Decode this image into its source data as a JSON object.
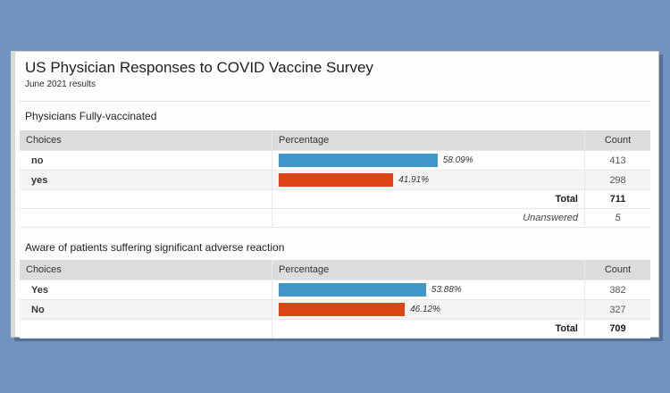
{
  "page": {
    "title": "US Physician Responses to COVID Vaccine Survey",
    "subtitle": "June 2021 results"
  },
  "colors": {
    "page_background": "#7093c0",
    "card_background": "#fdfdfd",
    "table_header_background": "#dcdcdc",
    "alt_row_background": "#f4f4f4",
    "bar_blue": "#3e97c8",
    "bar_orange": "#dc4513"
  },
  "tables": [
    {
      "heading": "Physicians Fully-vaccinated",
      "columns": [
        "Choices",
        "Percentage",
        "Count"
      ],
      "rows": [
        {
          "choice": "no",
          "percentage": 58.09,
          "percentage_label": "58.09%",
          "count": "413",
          "bar_color": "#3e97c8"
        },
        {
          "choice": "yes",
          "percentage": 41.91,
          "percentage_label": "41.91%",
          "count": "298",
          "bar_color": "#dc4513"
        }
      ],
      "total_label": "Total",
      "total_count": "711",
      "unanswered_label": "Unanswered",
      "unanswered_count": "5"
    },
    {
      "heading": "Aware of patients suffering significant adverse reaction",
      "columns": [
        "Choices",
        "Percentage",
        "Count"
      ],
      "rows": [
        {
          "choice": "Yes",
          "percentage": 53.88,
          "percentage_label": "53.88%",
          "count": "382",
          "bar_color": "#3e97c8"
        },
        {
          "choice": "No",
          "percentage": 46.12,
          "percentage_label": "46.12%",
          "count": "327",
          "bar_color": "#dc4513"
        }
      ],
      "total_label": "Total",
      "total_count": "709"
    }
  ],
  "chart_data": [
    {
      "type": "bar",
      "orientation": "horizontal",
      "title": "Physicians Fully-vaccinated",
      "categories": [
        "no",
        "yes"
      ],
      "values": [
        58.09,
        41.91
      ],
      "counts": [
        413,
        298
      ],
      "total": 711,
      "unanswered": 5,
      "xlabel": "Percentage",
      "ylabel": "Choices",
      "xlim": [
        0,
        100
      ],
      "bar_colors": [
        "#3e97c8",
        "#dc4513"
      ],
      "data_labels": [
        "58.09%",
        "41.91%"
      ]
    },
    {
      "type": "bar",
      "orientation": "horizontal",
      "title": "Aware of patients suffering significant adverse reaction",
      "categories": [
        "Yes",
        "No"
      ],
      "values": [
        53.88,
        46.12
      ],
      "counts": [
        382,
        327
      ],
      "total": 709,
      "xlabel": "Percentage",
      "ylabel": "Choices",
      "xlim": [
        0,
        100
      ],
      "bar_colors": [
        "#3e97c8",
        "#dc4513"
      ],
      "data_labels": [
        "53.88%",
        "46.12%"
      ]
    }
  ]
}
